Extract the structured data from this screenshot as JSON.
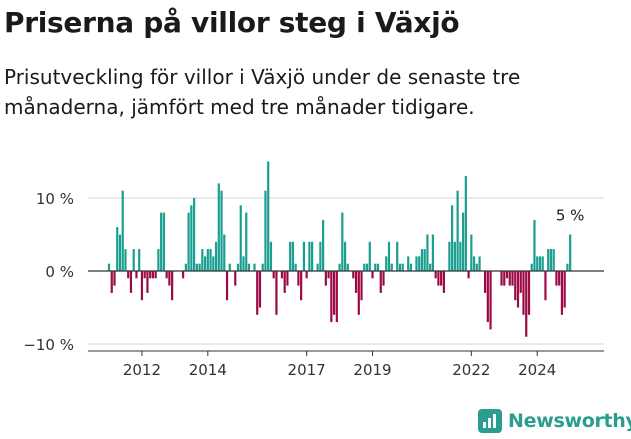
{
  "header": {
    "title": "Priserna på villor steg i Växjö",
    "subtitle": "Prisutveckling för villor i Växjö under de senaste tre månaderna, jämfört med tre månader tidigare."
  },
  "brand": {
    "name": "Newsworthy",
    "icon": "newsworthy-logo-icon",
    "color": "#2a9d8f"
  },
  "chart_data": {
    "type": "bar",
    "x_start": "2011-01",
    "ylim": [
      -10,
      15
    ],
    "yticks": [
      10,
      0,
      -10
    ],
    "ytick_labels": [
      "10 %",
      "0 %",
      "−10 %"
    ],
    "xticks": [
      "2012",
      "2014",
      "2017",
      "2019",
      "2022",
      "2024"
    ],
    "colors": {
      "positive": "#1a9e90",
      "negative": "#9b0a45"
    },
    "annotation": {
      "text": "5 %"
    },
    "values": [
      1,
      -3,
      -2,
      6,
      5,
      11,
      3,
      -1,
      -3,
      3,
      -1,
      3,
      -4,
      -1,
      -3,
      -1,
      -1,
      -1,
      3,
      8,
      8,
      -1,
      -2,
      -4,
      0,
      0,
      0,
      -1,
      1,
      8,
      9,
      10,
      1,
      1,
      3,
      2,
      3,
      3,
      2,
      4,
      12,
      11,
      5,
      -4,
      1,
      0,
      -2,
      1,
      9,
      2,
      8,
      1,
      0,
      1,
      -6,
      -5,
      1,
      11,
      15,
      4,
      -1,
      -6,
      0,
      -1,
      -3,
      -2,
      4,
      4,
      1,
      -2,
      -4,
      4,
      -1,
      4,
      4,
      0,
      1,
      4,
      7,
      -2,
      -1,
      -7,
      -6,
      -7,
      1,
      8,
      4,
      1,
      0,
      -1,
      -3,
      -6,
      -4,
      1,
      1,
      4,
      -1,
      1,
      1,
      -3,
      -2,
      2,
      4,
      1,
      0,
      4,
      1,
      1,
      0,
      2,
      1,
      0,
      2,
      2,
      3,
      3,
      5,
      1,
      5,
      -1,
      -2,
      -2,
      -3,
      0,
      4,
      9,
      4,
      11,
      4,
      8,
      13,
      -1,
      5,
      2,
      1,
      2,
      0,
      -3,
      -7,
      -8,
      0,
      0,
      0,
      -2,
      -2,
      -1,
      -2,
      -2,
      -4,
      -5,
      -3,
      -6,
      -9,
      -6,
      1,
      7,
      2,
      2,
      2,
      -4,
      3,
      3,
      3,
      -2,
      -2,
      -6,
      -5,
      1,
      5
    ]
  }
}
